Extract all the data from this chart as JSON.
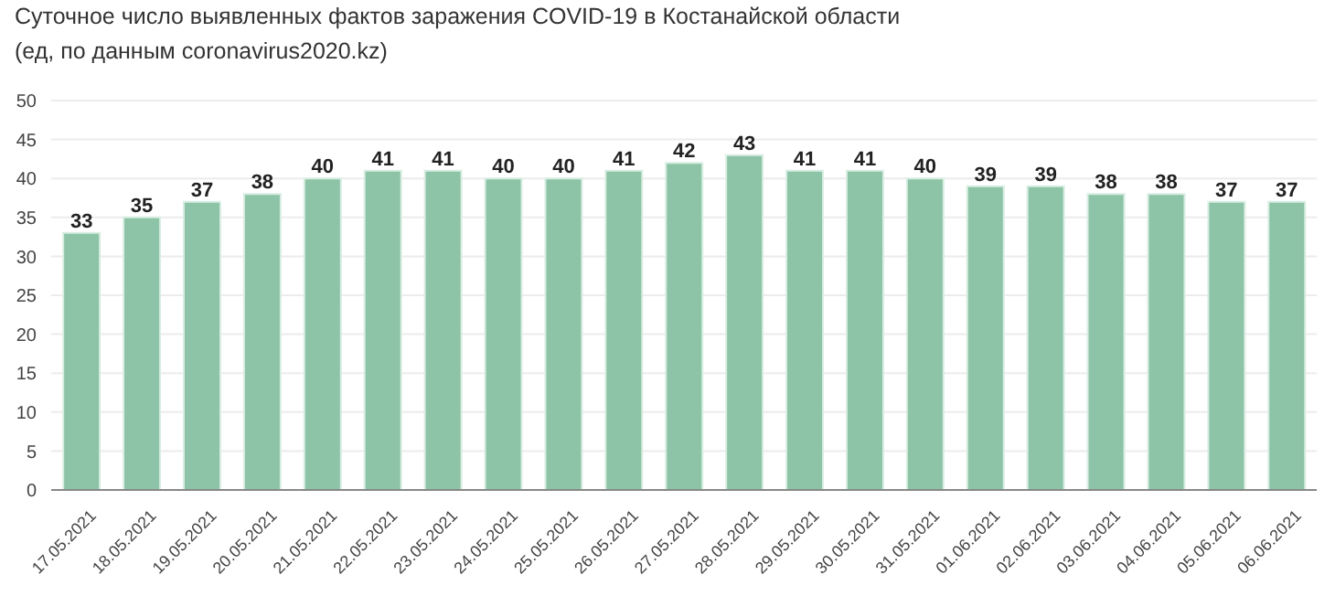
{
  "chart_data": {
    "type": "bar",
    "title": "Суточное число выявленных фактов заражения COVID-19 в Костанайской области",
    "subtitle": "(ед, по данным coronavirus2020.kz)",
    "categories": [
      "17.05.2021",
      "18.05.2021",
      "19.05.2021",
      "20.05.2021",
      "21.05.2021",
      "22.05.2021",
      "23.05.2021",
      "24.05.2021",
      "25.05.2021",
      "26.05.2021",
      "27.05.2021",
      "28.05.2021",
      "29.05.2021",
      "30.05.2021",
      "31.05.2021",
      "01.06.2021",
      "02.06.2021",
      "03.06.2021",
      "04.06.2021",
      "05.06.2021",
      "06.06.2021"
    ],
    "values": [
      33,
      35,
      37,
      38,
      40,
      41,
      41,
      40,
      40,
      41,
      42,
      43,
      41,
      41,
      40,
      39,
      39,
      38,
      38,
      37,
      37
    ],
    "color": "#8dc3a7",
    "ylim": [
      0,
      50
    ],
    "yticks": [
      0,
      5,
      10,
      15,
      20,
      25,
      30,
      35,
      40,
      45,
      50
    ],
    "grid": "y",
    "data_labels": true,
    "legend": false
  }
}
